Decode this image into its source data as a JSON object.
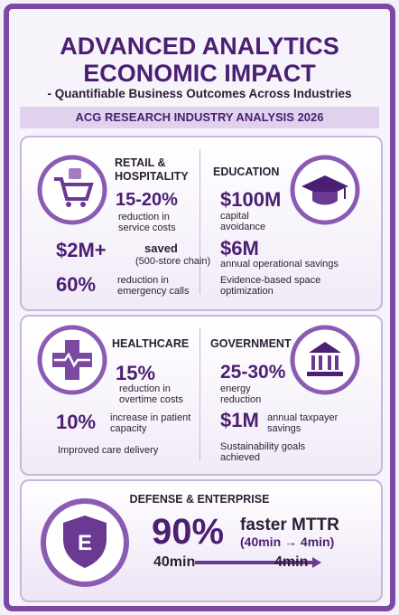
{
  "header": {
    "title_lines": [
      "ADVANCED ANALYTICS",
      "ECONOMIC IMPACT"
    ],
    "subtitle": "- Quantifiable Business Outcomes Across Industries",
    "banner": "ACG RESEARCH INDUSTRY ANALYSIS 2026"
  },
  "retail": {
    "title_lines": [
      "RETAIL &",
      "HOSPITALITY"
    ],
    "stat1": {
      "value": "15-20%",
      "text": "reduction in service costs"
    },
    "stat2": {
      "value": "$2M+",
      "text": "saved",
      "note": "(500-store chain)"
    },
    "stat3": {
      "value": "60%",
      "text": "reduction in emergency calls"
    }
  },
  "education": {
    "title": "EDUCATION",
    "stat1": {
      "value": "$100M",
      "text": "capital avoidance"
    },
    "stat2": {
      "value": "$6M",
      "text": "annual operational savings"
    },
    "bullet": "Evidence-based space optimization"
  },
  "healthcare": {
    "title": "HEALTHCARE",
    "stat1": {
      "value": "15%",
      "text": "reduction in overtime costs"
    },
    "stat2": {
      "value": "10%",
      "text": "increase in patient capacity"
    },
    "bullet": "Improved care delivery"
  },
  "government": {
    "title": "GOVERNMENT",
    "stat1": {
      "value": "25-30%",
      "text": "energy reduction"
    },
    "stat2": {
      "value": "$1M",
      "text": "annual taxpayer savings"
    },
    "bullet": "Sustainability goals achieved"
  },
  "defense": {
    "title": "DEFENSE & ENTERPRISE",
    "value": "90%",
    "text": "faster MTTR",
    "note": "(40min → 4min)",
    "from": "40min",
    "to": "4min"
  }
}
